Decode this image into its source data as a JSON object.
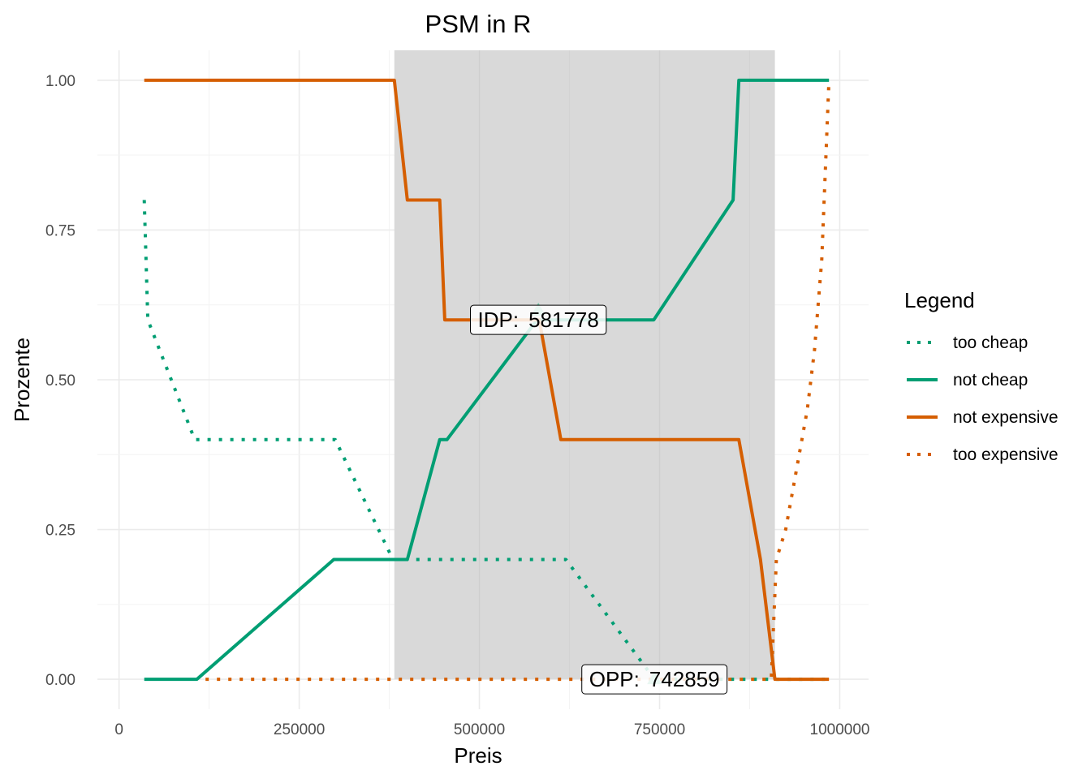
{
  "chart_data": {
    "type": "line",
    "title": "PSM in R",
    "xlabel": "Preis",
    "ylabel": "Prozente",
    "xlim": [
      -30000,
      1040000
    ],
    "ylim": [
      -0.05,
      1.05
    ],
    "x_ticks": [
      0,
      250000,
      500000,
      750000,
      1000000
    ],
    "x_tick_labels": [
      "0",
      "250000",
      "500000",
      "750000",
      "1000000"
    ],
    "y_ticks": [
      0,
      0.25,
      0.5,
      0.75,
      1
    ],
    "y_tick_labels": [
      "0.00",
      "0.25",
      "0.50",
      "0.75",
      "1.00"
    ],
    "grid": true,
    "shaded_range": {
      "x_start": 382000,
      "x_end": 910000,
      "color": "#d9d9d9"
    },
    "legend": {
      "title": "Legend",
      "placement": "right",
      "entries": [
        {
          "label": "too cheap",
          "color": "#009E73",
          "style": "dotted"
        },
        {
          "label": "not cheap",
          "color": "#009E73",
          "style": "solid"
        },
        {
          "label": "not expensive",
          "color": "#D55E00",
          "style": "solid"
        },
        {
          "label": "too expensive",
          "color": "#D55E00",
          "style": "dotted"
        }
      ]
    },
    "series": [
      {
        "name": "too cheap",
        "color": "#009E73",
        "style": "dotted",
        "x": [
          35000,
          40000,
          105000,
          110000,
          300000,
          380000,
          450000,
          460000,
          615000,
          620000,
          742859,
          900000,
          985000
        ],
        "y": [
          0.8,
          0.6,
          0.4,
          0.4,
          0.4,
          0.2,
          0.2,
          0.2,
          0.2,
          0.2,
          0.0,
          0.0,
          0.0
        ]
      },
      {
        "name": "not cheap",
        "color": "#009E73",
        "style": "solid",
        "x": [
          35000,
          108000,
          298000,
          400000,
          445000,
          455000,
          580000,
          742000,
          852000,
          860000,
          985000
        ],
        "y": [
          0.0,
          0.0,
          0.2,
          0.2,
          0.4,
          0.4,
          0.6,
          0.6,
          0.8,
          1.0,
          1.0
        ]
      },
      {
        "name": "not expensive",
        "color": "#D55E00",
        "style": "solid",
        "x": [
          35000,
          382000,
          400000,
          445000,
          452000,
          583000,
          613000,
          860000,
          890000,
          910000,
          985000
        ],
        "y": [
          1.0,
          1.0,
          0.8,
          0.8,
          0.6,
          0.6,
          0.4,
          0.4,
          0.2,
          0.0,
          0.0
        ]
      },
      {
        "name": "too expensive",
        "color": "#D55E00",
        "style": "dotted",
        "x": [
          120000,
          905000,
          912000,
          925000,
          940000,
          955000,
          965000,
          975000,
          985000
        ],
        "y": [
          0.0,
          0.0,
          0.2,
          0.25,
          0.35,
          0.45,
          0.55,
          0.7,
          1.0
        ]
      }
    ],
    "points": [
      {
        "x": 581778,
        "y": 0.615,
        "color": "#6DC6A5"
      },
      {
        "x": 742859,
        "y": 0.0,
        "color": "#6DC6A5"
      }
    ],
    "annotations": [
      {
        "prefix": "IDP:",
        "value": "581778",
        "x": 581778,
        "y": 0.6
      },
      {
        "prefix": "OPP:",
        "value": "742859",
        "x": 742859,
        "y": 0.0
      }
    ]
  }
}
